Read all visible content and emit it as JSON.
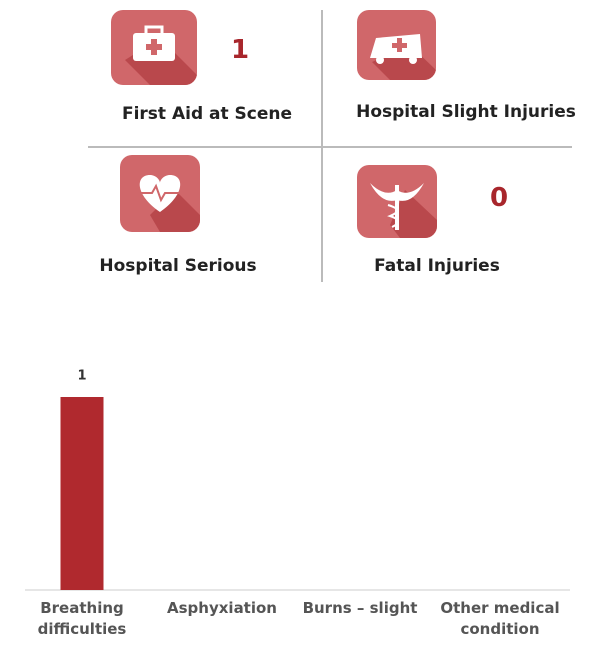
{
  "tiles": [
    {
      "label": "First Aid at Scene",
      "value": 1
    },
    {
      "label": "Hospital Slight Injuries"
    },
    {
      "label": "Hospital Serious"
    },
    {
      "label": "Fatal Injuries",
      "value": 0
    }
  ],
  "chart_data": {
    "type": "bar",
    "categories": [
      "Breathing difficulties",
      "Asphyxiation",
      "Burns – slight",
      "Other medical condition"
    ],
    "values": [
      1,
      0,
      0,
      0
    ],
    "color": "#b0292e"
  }
}
